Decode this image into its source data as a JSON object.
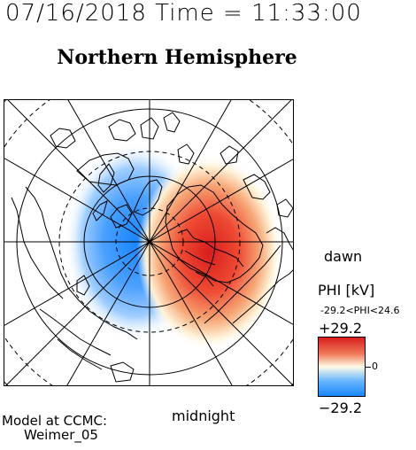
{
  "header": {
    "timestamp": "07/16/2018 Time = 11:33:00",
    "hemisphere_title": "Northern Hemisphere"
  },
  "map": {
    "projection": "north-polar",
    "labels": {
      "dawn": "dawn",
      "midnight": "midnight"
    }
  },
  "colorbar": {
    "title": "PHI [kV]",
    "range_text": "-29.2<PHI<24.6",
    "max_label": "+29.2",
    "min_label": "−29.2",
    "zero_label": "0",
    "max_value": 29.2,
    "min_value": -29.2,
    "color_high": "#d81d1d",
    "color_zero": "#fffbe6",
    "color_low": "#1a86ff"
  },
  "credit": {
    "line1": "Model at CCMC:",
    "line2": "Weimer_05"
  }
}
